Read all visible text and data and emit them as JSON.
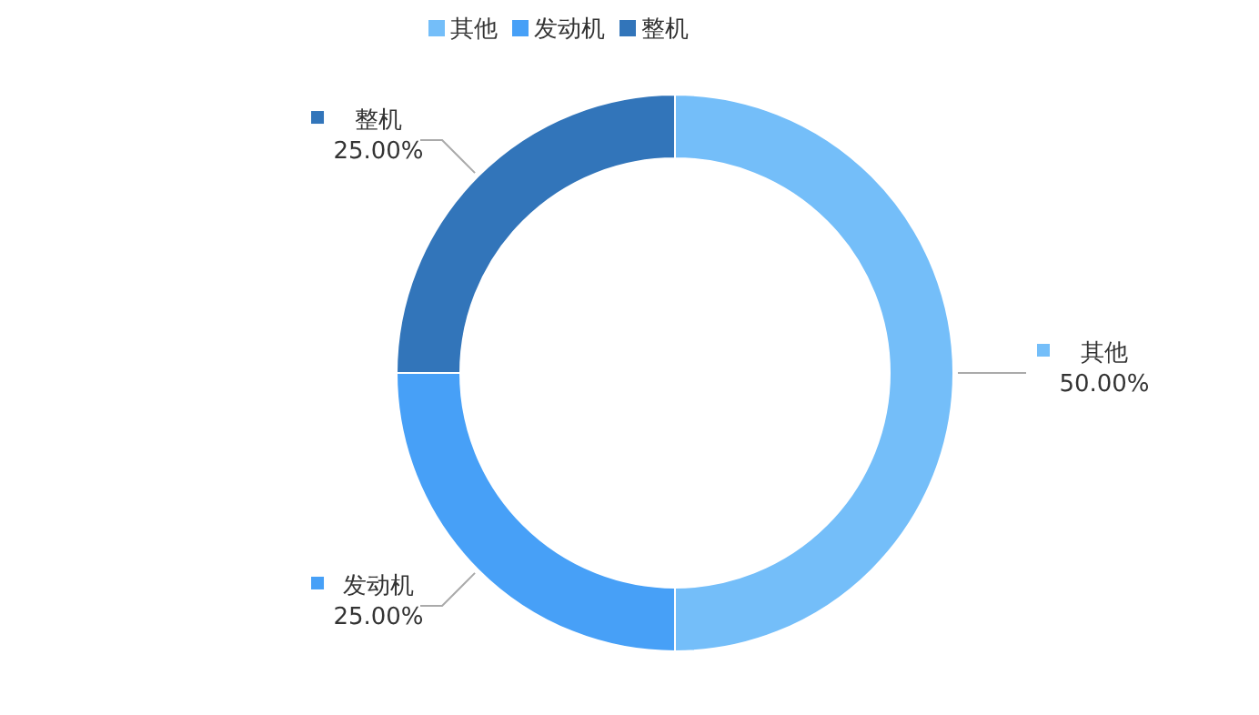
{
  "chart_data": {
    "type": "donut",
    "categories": [
      "其他",
      "发动机",
      "整机"
    ],
    "values": [
      50,
      25,
      25
    ],
    "value_labels": [
      "50.00%",
      "25.00%",
      "25.00%"
    ],
    "colors": [
      "#74bef9",
      "#47a0f7",
      "#3275ba"
    ],
    "legend": "top"
  }
}
